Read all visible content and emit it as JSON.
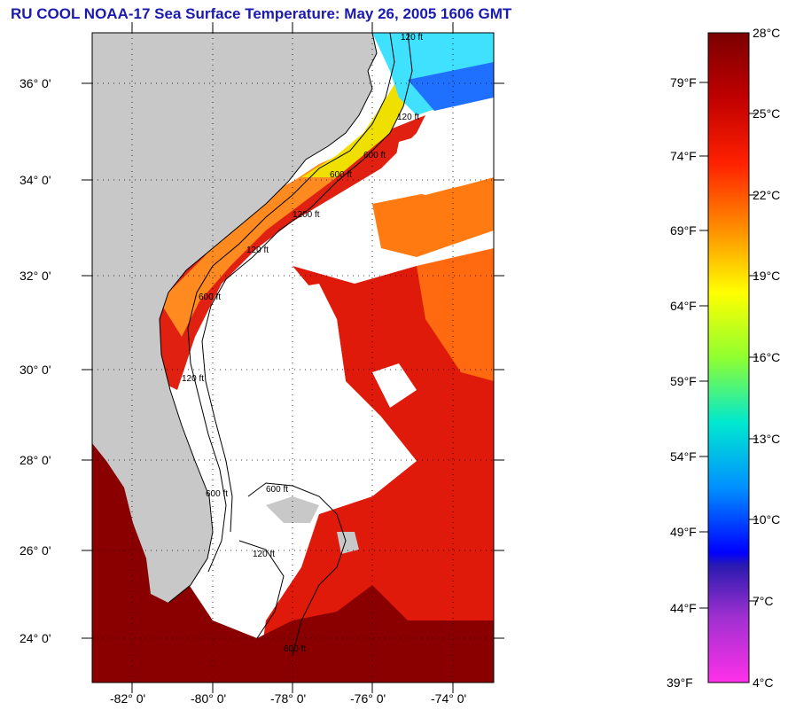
{
  "title": "RU COOL  NOAA-17  Sea Surface Temperature:  May 26, 2005 1606 GMT",
  "map": {
    "lat_labels": [
      "36° 0'",
      "34° 0'",
      "32° 0'",
      "30° 0'",
      "28° 0'",
      "26° 0'",
      "24° 0'"
    ],
    "lon_labels": [
      "-82° 0'",
      "-80° 0'",
      "-78° 0'",
      "-76° 0'",
      "-74° 0'"
    ],
    "contour_labels": [
      "120 ft",
      "120 ft",
      "600 ft",
      "600 ft",
      "1200 ft",
      "120 ft",
      "600 ft",
      "120 ft",
      "600 ft",
      "600 ft",
      "120 ft",
      "600 ft"
    ],
    "land_color": "#c8c8c8",
    "cloud_color": "#ffffff"
  },
  "colorbar": {
    "fahrenheit_labels": [
      "79°F",
      "74°F",
      "69°F",
      "64°F",
      "59°F",
      "54°F",
      "49°F",
      "44°F",
      "39°F"
    ],
    "celsius_labels": [
      "28°C",
      "25°C",
      "22°C",
      "19°C",
      "16°C",
      "13°C",
      "10°C",
      "7°C",
      "4°C"
    ],
    "colors": [
      "#7a0000",
      "#b00000",
      "#ff1a00",
      "#ff7a00",
      "#ffd000",
      "#ffff00",
      "#a0ff00",
      "#00e0a0",
      "#00e8ff",
      "#0080ff",
      "#0000ff",
      "#6a30c0",
      "#c030e0",
      "#ff30e0"
    ]
  }
}
